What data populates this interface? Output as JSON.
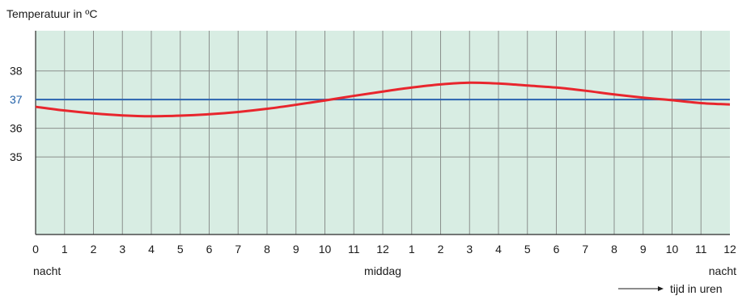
{
  "chart_data": {
    "type": "line",
    "title": "Temperatuur in ºC",
    "xlabel": "tijd in uren",
    "ylabel": "Temperatuur in ºC",
    "x_tick_labels": [
      "0",
      "1",
      "2",
      "3",
      "4",
      "5",
      "6",
      "7",
      "8",
      "9",
      "10",
      "11",
      "12",
      "1",
      "2",
      "3",
      "4",
      "5",
      "6",
      "7",
      "8",
      "9",
      "10",
      "11",
      "12"
    ],
    "x_sublabels": [
      {
        "hour": 0,
        "text": "nacht"
      },
      {
        "hour": 12,
        "text": "middag"
      },
      {
        "hour": 24,
        "text": "nacht"
      }
    ],
    "y_ticks": [
      35,
      36,
      37,
      38
    ],
    "y_reference": 37,
    "xlim": [
      0,
      24
    ],
    "ylim": [
      32.3,
      39.4
    ],
    "grid": true,
    "colors": {
      "plot_bg": "#d8ede3",
      "grid": "#8a8f8c",
      "curve": "#e8262d",
      "reference": "#2a63b0",
      "reference_label": "#1f5fa8"
    },
    "series": [
      {
        "x": [
          0,
          1,
          2,
          3,
          4,
          5,
          6,
          7,
          8,
          9,
          10,
          11,
          12,
          13,
          14,
          15,
          16,
          17,
          18,
          19,
          20,
          21,
          22,
          23,
          24
        ],
        "y": [
          36.75,
          36.62,
          36.52,
          36.45,
          36.42,
          36.44,
          36.49,
          36.57,
          36.68,
          36.82,
          36.97,
          37.13,
          37.28,
          37.42,
          37.53,
          37.59,
          37.56,
          37.49,
          37.42,
          37.31,
          37.18,
          37.07,
          36.98,
          36.88,
          36.83
        ]
      }
    ],
    "reference_line": {
      "y": 37
    }
  }
}
